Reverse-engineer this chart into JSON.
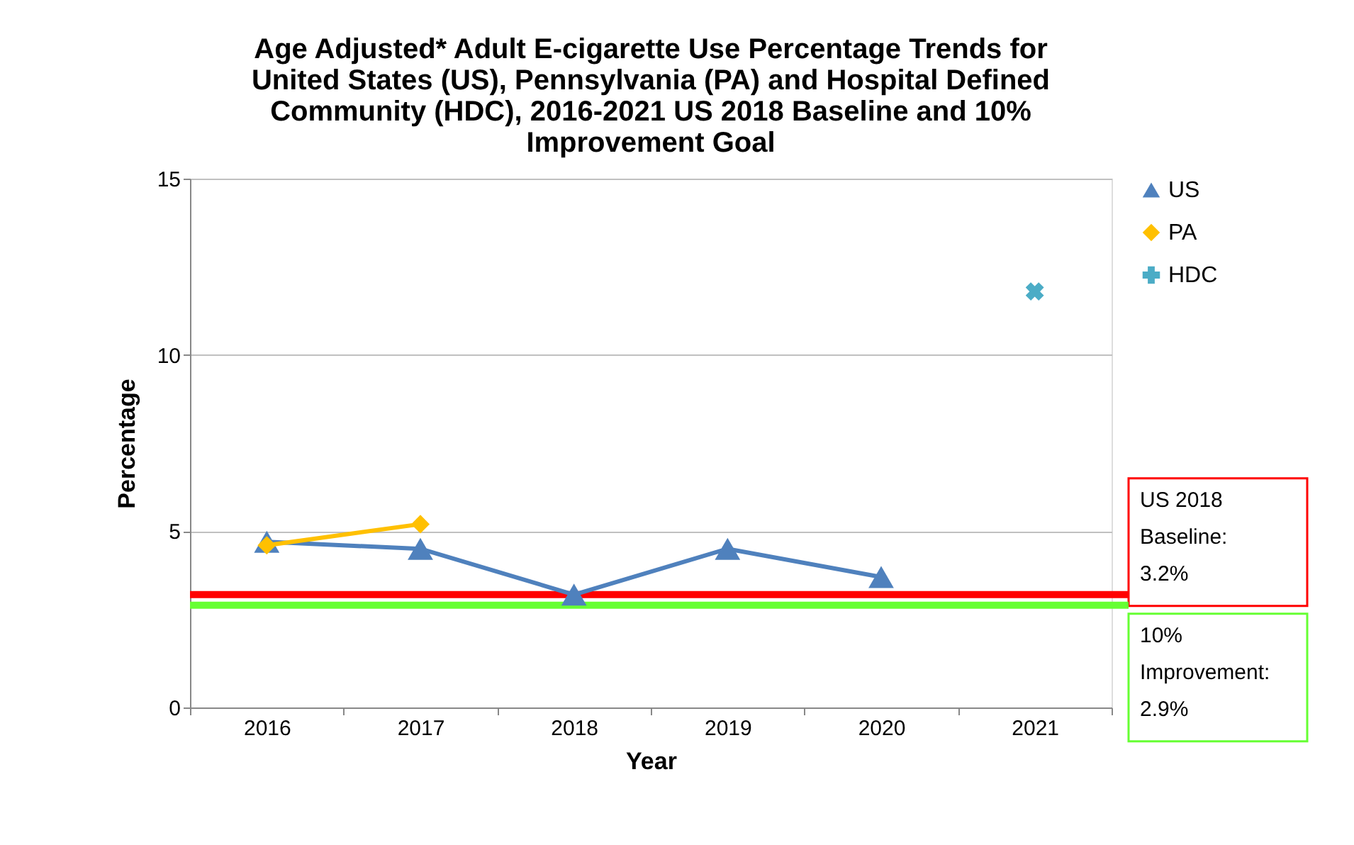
{
  "chart_data": {
    "type": "line",
    "title": [
      "Age Adjusted* Adult E-cigarette Use Percentage Trends for",
      "United States (US), Pennsylvania (PA) and Hospital Defined",
      "Community (HDC), 2016-2021 US 2018 Baseline and 10%",
      "Improvement Goal"
    ],
    "xlabel": "Year",
    "ylabel": "Percentage",
    "categories": [
      "2016",
      "2017",
      "2018",
      "2019",
      "2020",
      "2021"
    ],
    "series": [
      {
        "name": "US",
        "color": "#4f81bd",
        "marker": "triangle",
        "values": [
          4.7,
          4.5,
          3.2,
          4.5,
          3.7,
          null
        ]
      },
      {
        "name": "PA",
        "color": "#ffc000",
        "marker": "diamond",
        "values": [
          4.6,
          5.2,
          null,
          null,
          null,
          null
        ]
      },
      {
        "name": "HDC",
        "color": "#4bacc6",
        "type": "scatter",
        "marker": "cross",
        "values": [
          null,
          null,
          null,
          null,
          null,
          11.8
        ]
      }
    ],
    "ylim": [
      0,
      15
    ],
    "yticks": [
      0,
      5,
      10,
      15
    ],
    "grid": "y",
    "legend": "top right",
    "ref_lines": [
      {
        "axis": "y",
        "value": 3.2,
        "label": "US 2018 Baseline: 3.2%",
        "color": "#ff0000"
      },
      {
        "axis": "y",
        "value": 2.9,
        "label": "10% Improvement: 2.9%",
        "color": "#66ff33"
      }
    ]
  }
}
